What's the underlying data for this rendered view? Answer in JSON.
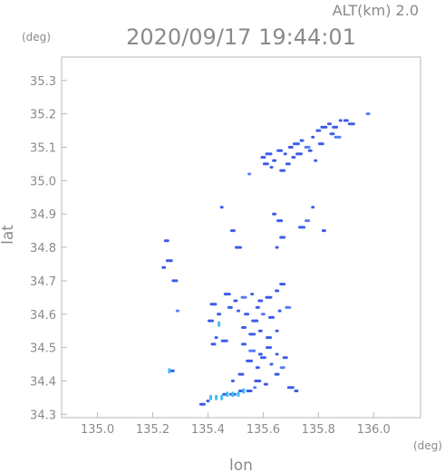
{
  "header": {
    "altitude": "ALT(km) 2.0",
    "timestamp": "2020/09/17 19:44:01"
  },
  "chart_data": {
    "type": "scatter",
    "title": "2020/09/17 19:44:01",
    "subtitle": "ALT(km) 2.0",
    "xlabel": "lon",
    "ylabel": "lat",
    "x_unit": "(deg)",
    "y_unit": "(deg)",
    "xlim": [
      134.87,
      136.17
    ],
    "ylim": [
      34.29,
      35.37
    ],
    "x_ticks": [
      "135.0",
      "135.2",
      "135.4",
      "135.6",
      "135.8",
      "136.0"
    ],
    "y_ticks": [
      "34.3",
      "34.4",
      "34.5",
      "34.6",
      "34.7",
      "34.8",
      "34.9",
      "35.0",
      "35.1",
      "35.2",
      "35.3"
    ],
    "grid": false,
    "colors": {
      "main": "#3d5ce8",
      "strong": "#5a7cf8",
      "light": "#3fc0ee",
      "dark": "#1f2fb8"
    },
    "series": [
      {
        "points": [
          [
            135.55,
            35.02
          ],
          [
            135.6,
            35.07
          ],
          [
            135.62,
            35.08
          ],
          [
            135.64,
            35.06
          ],
          [
            135.66,
            35.09
          ],
          [
            135.68,
            35.08
          ],
          [
            135.7,
            35.1
          ],
          [
            135.72,
            35.11
          ],
          [
            135.74,
            35.12
          ],
          [
            135.76,
            35.1
          ],
          [
            135.78,
            35.13
          ],
          [
            135.8,
            35.15
          ],
          [
            135.82,
            35.16
          ],
          [
            135.84,
            35.17
          ],
          [
            135.86,
            35.16
          ],
          [
            135.88,
            35.18
          ],
          [
            135.9,
            35.18
          ],
          [
            135.92,
            35.17
          ],
          [
            135.98,
            35.2
          ],
          [
            135.61,
            35.05
          ],
          [
            135.63,
            35.04
          ],
          [
            135.69,
            35.05
          ],
          [
            135.73,
            35.08
          ],
          [
            135.77,
            35.09
          ],
          [
            135.81,
            35.11
          ],
          [
            135.79,
            35.06
          ],
          [
            135.85,
            35.14
          ],
          [
            135.87,
            35.13
          ],
          [
            135.71,
            35.07
          ],
          [
            135.67,
            35.03
          ],
          [
            135.45,
            34.92
          ],
          [
            135.49,
            34.85
          ],
          [
            135.51,
            34.8
          ],
          [
            135.64,
            34.9
          ],
          [
            135.66,
            34.88
          ],
          [
            135.78,
            34.92
          ],
          [
            135.76,
            34.88
          ],
          [
            135.74,
            34.86
          ],
          [
            135.82,
            34.85
          ],
          [
            135.67,
            34.83
          ],
          [
            135.65,
            34.8
          ],
          [
            135.25,
            34.82
          ],
          [
            135.26,
            34.76
          ],
          [
            135.24,
            34.74
          ],
          [
            135.28,
            34.7
          ],
          [
            135.29,
            34.61
          ],
          [
            135.27,
            34.43
          ],
          [
            135.42,
            34.63
          ],
          [
            135.44,
            34.6
          ],
          [
            135.41,
            34.58
          ],
          [
            135.43,
            34.53
          ],
          [
            135.42,
            34.51
          ],
          [
            135.47,
            34.66
          ],
          [
            135.5,
            34.64
          ],
          [
            135.53,
            34.65
          ],
          [
            135.56,
            34.66
          ],
          [
            135.59,
            34.64
          ],
          [
            135.62,
            34.65
          ],
          [
            135.65,
            34.67
          ],
          [
            135.67,
            34.69
          ],
          [
            135.51,
            34.61
          ],
          [
            135.54,
            34.6
          ],
          [
            135.57,
            34.58
          ],
          [
            135.6,
            34.6
          ],
          [
            135.63,
            34.59
          ],
          [
            135.66,
            34.61
          ],
          [
            135.53,
            34.56
          ],
          [
            135.56,
            34.54
          ],
          [
            135.59,
            34.55
          ],
          [
            135.62,
            34.53
          ],
          [
            135.65,
            34.55
          ],
          [
            135.53,
            34.51
          ],
          [
            135.56,
            34.49
          ],
          [
            135.59,
            34.48
          ],
          [
            135.62,
            34.5
          ],
          [
            135.65,
            34.48
          ],
          [
            135.68,
            34.47
          ],
          [
            135.55,
            34.46
          ],
          [
            135.58,
            34.44
          ],
          [
            135.6,
            34.47
          ],
          [
            135.63,
            34.45
          ],
          [
            135.67,
            34.44
          ],
          [
            135.58,
            34.4
          ],
          [
            135.61,
            34.39
          ],
          [
            135.52,
            34.42
          ],
          [
            135.49,
            34.4
          ],
          [
            135.65,
            34.42
          ],
          [
            135.7,
            34.38
          ],
          [
            135.72,
            34.37
          ],
          [
            135.55,
            34.37
          ],
          [
            135.57,
            34.38
          ],
          [
            135.52,
            34.37
          ],
          [
            135.49,
            34.36
          ],
          [
            135.46,
            34.36
          ],
          [
            135.38,
            34.33
          ],
          [
            135.4,
            34.34
          ],
          [
            135.48,
            34.62
          ],
          [
            135.46,
            34.52
          ],
          [
            135.58,
            34.62
          ],
          [
            135.69,
            34.62
          ]
        ]
      },
      {
        "points": [
          [
            135.41,
            34.35
          ],
          [
            135.43,
            34.35
          ],
          [
            135.45,
            34.35
          ],
          [
            135.47,
            34.36
          ],
          [
            135.49,
            34.36
          ],
          [
            135.51,
            34.36
          ],
          [
            135.53,
            34.37
          ],
          [
            135.26,
            34.43
          ],
          [
            135.44,
            34.57
          ]
        ]
      }
    ]
  }
}
